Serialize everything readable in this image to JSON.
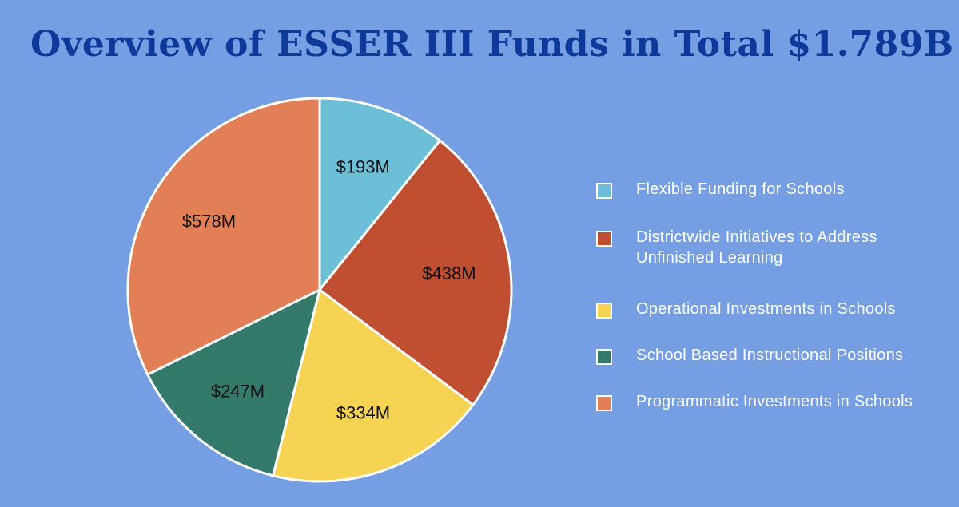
{
  "chart_data": {
    "type": "pie",
    "title": "Overview of ESSER III Funds in Total $1.789B",
    "total_label": "$1.789B",
    "slices": [
      {
        "name": "Flexible Funding for Schools",
        "value": 193,
        "label": "$193M",
        "color": "#6cbfd6"
      },
      {
        "name": "Districtwide Initiatives to Address Unfinished Learning",
        "value": 438,
        "label": "$438M",
        "color": "#c04f31"
      },
      {
        "name": "Operational Investments in Schools",
        "value": 334,
        "label": "$334M",
        "color": "#f6d352"
      },
      {
        "name": "School Based Instructional Positions",
        "value": 247,
        "label": "$247M",
        "color": "#347a6b"
      },
      {
        "name": "Programmatic Investments in Schools",
        "value": 578,
        "label": "$578M",
        "color": "#e27f56"
      }
    ],
    "legend_position": "right",
    "units": "millions USD"
  }
}
